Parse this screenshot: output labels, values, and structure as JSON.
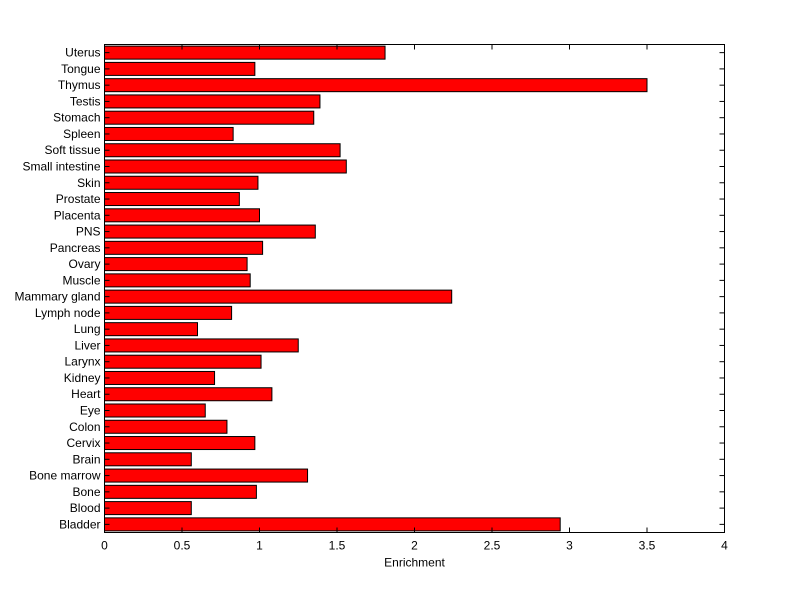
{
  "chart_data": {
    "type": "bar",
    "orientation": "horizontal",
    "title": "",
    "xlabel": "Enrichment",
    "ylabel": "",
    "xlim": [
      0,
      4
    ],
    "xticks": [
      "0",
      "0.5",
      "1",
      "1.5",
      "2",
      "2.5",
      "3",
      "3.5",
      "4"
    ],
    "bar_color": "#ff0000",
    "edge_color": "#000000",
    "grid": false,
    "categories": [
      "Bladder",
      "Blood",
      "Bone",
      "Bone marrow",
      "Brain",
      "Cervix",
      "Colon",
      "Eye",
      "Heart",
      "Kidney",
      "Larynx",
      "Liver",
      "Lung",
      "Lymph node",
      "Mammary gland",
      "Muscle",
      "Ovary",
      "Pancreas",
      "PNS",
      "Placenta",
      "Prostate",
      "Skin",
      "Small intestine",
      "Soft tissue",
      "Spleen",
      "Stomach",
      "Testis",
      "Thymus",
      "Tongue",
      "Uterus"
    ],
    "values": [
      2.94,
      0.56,
      0.98,
      1.31,
      0.56,
      0.97,
      0.79,
      0.65,
      1.08,
      0.71,
      1.01,
      1.25,
      0.6,
      0.82,
      2.24,
      0.94,
      0.92,
      1.02,
      1.36,
      1.0,
      0.87,
      0.99,
      1.56,
      1.52,
      0.83,
      1.35,
      1.39,
      3.5,
      0.97,
      1.81
    ]
  }
}
